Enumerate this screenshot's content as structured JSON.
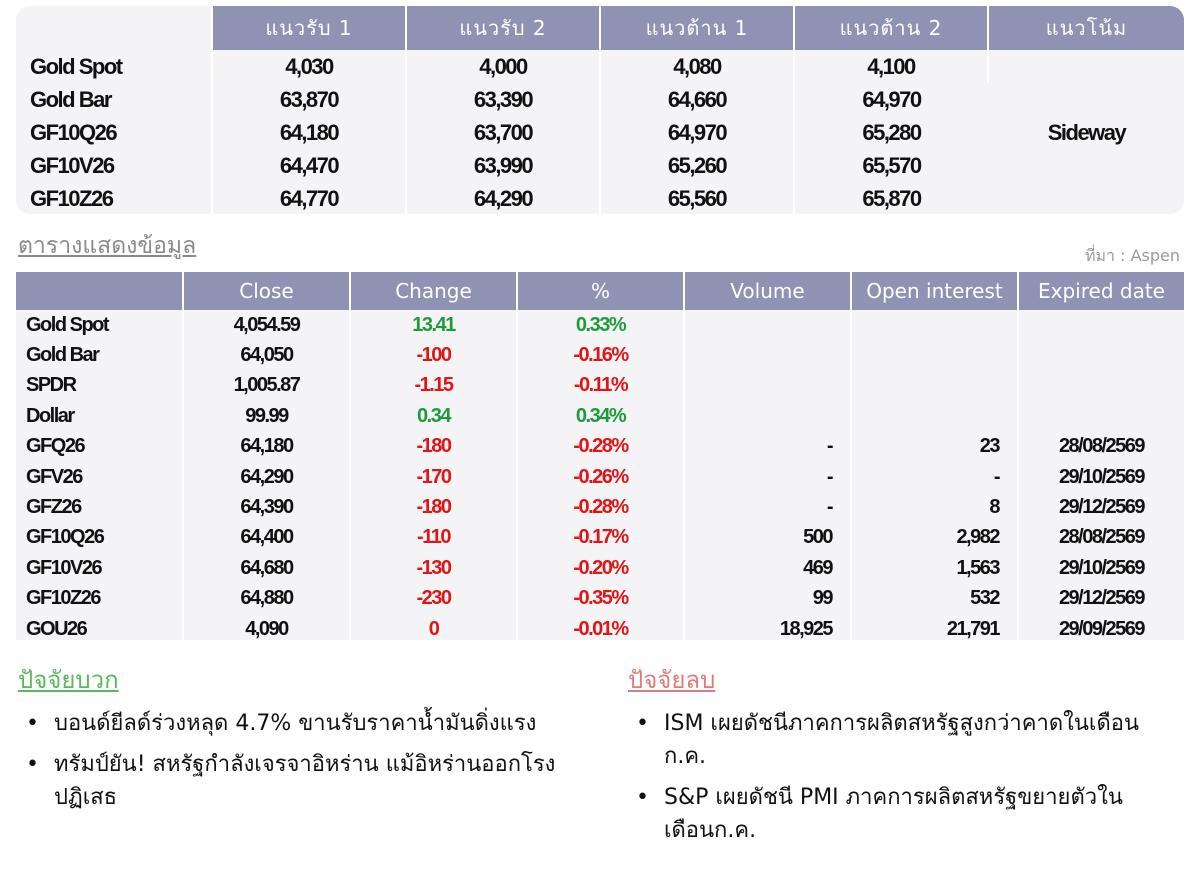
{
  "levels": {
    "headers": [
      "",
      "แนวรับ 1",
      "แนวรับ 2",
      "แนวต้าน 1",
      "แนวต้าน 2",
      "แนวโน้ม"
    ],
    "rows": [
      {
        "name": "Gold Spot",
        "s1": "4,030",
        "s2": "4,000",
        "r1": "4,080",
        "r2": "4,100"
      },
      {
        "name": "Gold Bar",
        "s1": "63,870",
        "s2": "63,390",
        "r1": "64,660",
        "r2": "64,970"
      },
      {
        "name": "GF10Q26",
        "s1": "64,180",
        "s2": "63,700",
        "r1": "64,970",
        "r2": "65,280"
      },
      {
        "name": "GF10V26",
        "s1": "64,470",
        "s2": "63,990",
        "r1": "65,260",
        "r2": "65,570"
      },
      {
        "name": "GF10Z26",
        "s1": "64,770",
        "s2": "64,290",
        "r1": "65,560",
        "r2": "65,870"
      }
    ],
    "trend": "Sideway"
  },
  "section_title": "ตารางแสดงข้อมูล",
  "source": "ที่มา : Aspen",
  "market": {
    "headers": [
      "",
      "Close",
      "Change",
      "%",
      "Volume",
      "Open interest",
      "Expired date"
    ],
    "rows": [
      {
        "name": "Gold Spot",
        "close": "4,054.59",
        "change": "13.41",
        "pct": "0.33%",
        "volume": "",
        "oi": "",
        "expiry": "",
        "dir": "pos"
      },
      {
        "name": "Gold Bar",
        "close": "64,050",
        "change": "-100",
        "pct": "-0.16%",
        "volume": "",
        "oi": "",
        "expiry": "",
        "dir": "neg"
      },
      {
        "name": "SPDR",
        "close": "1,005.87",
        "change": "-1.15",
        "pct": "-0.11%",
        "volume": "",
        "oi": "",
        "expiry": "",
        "dir": "neg"
      },
      {
        "name": "Dollar",
        "close": "99.99",
        "change": "0.34",
        "pct": "0.34%",
        "volume": "",
        "oi": "",
        "expiry": "",
        "dir": "pos"
      },
      {
        "name": "GFQ26",
        "close": "64,180",
        "change": "-180",
        "pct": "-0.28%",
        "volume": "-",
        "oi": "23",
        "expiry": "28/08/2569",
        "dir": "neg"
      },
      {
        "name": "GFV26",
        "close": "64,290",
        "change": "-170",
        "pct": "-0.26%",
        "volume": "-",
        "oi": "-",
        "expiry": "29/10/2569",
        "dir": "neg"
      },
      {
        "name": "GFZ26",
        "close": "64,390",
        "change": "-180",
        "pct": "-0.28%",
        "volume": "-",
        "oi": "8",
        "expiry": "29/12/2569",
        "dir": "neg"
      },
      {
        "name": "GF10Q26",
        "close": "64,400",
        "change": "-110",
        "pct": "-0.17%",
        "volume": "500",
        "oi": "2,982",
        "expiry": "28/08/2569",
        "dir": "neg"
      },
      {
        "name": "GF10V26",
        "close": "64,680",
        "change": "-130",
        "pct": "-0.20%",
        "volume": "469",
        "oi": "1,563",
        "expiry": "29/10/2569",
        "dir": "neg"
      },
      {
        "name": "GF10Z26",
        "close": "64,880",
        "change": "-230",
        "pct": "-0.35%",
        "volume": "99",
        "oi": "532",
        "expiry": "29/12/2569",
        "dir": "neg"
      },
      {
        "name": "GOU26",
        "close": "4,090",
        "change": "0",
        "pct": "-0.01%",
        "volume": "18,925",
        "oi": "21,791",
        "expiry": "29/09/2569",
        "dir": "neg"
      }
    ]
  },
  "positive_factors": {
    "title": "ปัจจัยบวก",
    "items": [
      "บอนด์ยีลด์ร่วงหลุด 4.7% ขานรับราคาน้ำมันดิ่งแรง",
      "ทรัมป์ยัน! สหรัฐกำลังเจรจาอิหร่าน แม้อิหร่านออกโรงปฏิเสธ"
    ]
  },
  "negative_factors": {
    "title": "ปัจจัยลบ",
    "items": [
      "ISM เผยดัชนีภาคการผลิตสหรัฐสูงกว่าคาดในเดือนก.ค.",
      "S&P เผยดัชนี PMI ภาคการผลิตสหรัฐขยายตัวในเดือนก.ค."
    ]
  },
  "colors": {
    "header_bg": "#8f93b3",
    "table_bg": "#f4f4f7",
    "positive": "#1e9a3c",
    "negative": "#e01515",
    "positive_title": "#5cb85c",
    "negative_title": "#e07b7b"
  },
  "bullet_icon": "bullet-dot-icon"
}
